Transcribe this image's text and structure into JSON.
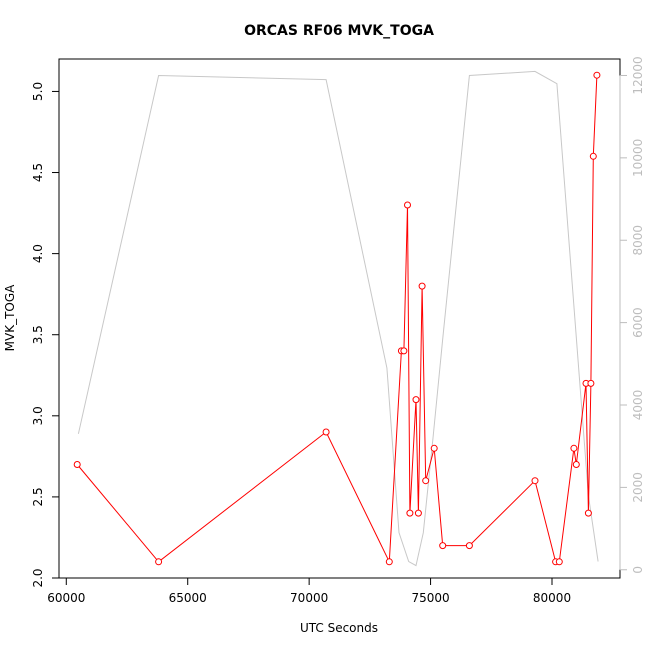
{
  "chart_data": {
    "type": "line",
    "title": "ORCAS RF06 MVK_TOGA",
    "xlabel": "UTC Seconds",
    "ylabel": "MVK_TOGA",
    "xlim": [
      59700,
      82800
    ],
    "ylim": [
      2.0,
      5.2
    ],
    "y2lim": [
      -200,
      12400
    ],
    "x_ticks": [
      "60000",
      "65000",
      "70000",
      "75000",
      "80000"
    ],
    "y_ticks": [
      "2.0",
      "2.5",
      "3.0",
      "3.5",
      "4.0",
      "4.5",
      "5.0"
    ],
    "y2_ticks": [
      "0",
      "2000",
      "4000",
      "6000",
      "8000",
      "10000",
      "12000"
    ],
    "grid": false,
    "series": [
      {
        "color": "#ff0000",
        "axis": "left",
        "markers": true,
        "x": [
          60450,
          63800,
          70700,
          73300,
          73800,
          73900,
          74050,
          74150,
          74400,
          74500,
          74650,
          74800,
          75150,
          75500,
          76600,
          79300,
          80150,
          80300,
          80900,
          81000,
          81400,
          81500,
          81600,
          81700,
          81850
        ],
        "y": [
          2.7,
          2.1,
          2.9,
          2.1,
          3.4,
          3.4,
          4.3,
          2.4,
          3.1,
          2.4,
          3.8,
          2.6,
          2.8,
          2.2,
          2.2,
          2.6,
          2.1,
          2.1,
          2.8,
          2.7,
          3.2,
          2.4,
          3.2,
          4.6,
          5.1
        ]
      },
      {
        "color": "#c8c8c8",
        "axis": "right",
        "markers": false,
        "x": [
          60500,
          63800,
          70700,
          73200,
          73700,
          74100,
          74400,
          74700,
          75100,
          75500,
          76600,
          79300,
          80200,
          81500,
          81900
        ],
        "y": [
          3300,
          12000,
          11900,
          4900,
          900,
          200,
          100,
          900,
          3200,
          5600,
          12000,
          12100,
          11800,
          1800,
          200
        ]
      }
    ]
  }
}
